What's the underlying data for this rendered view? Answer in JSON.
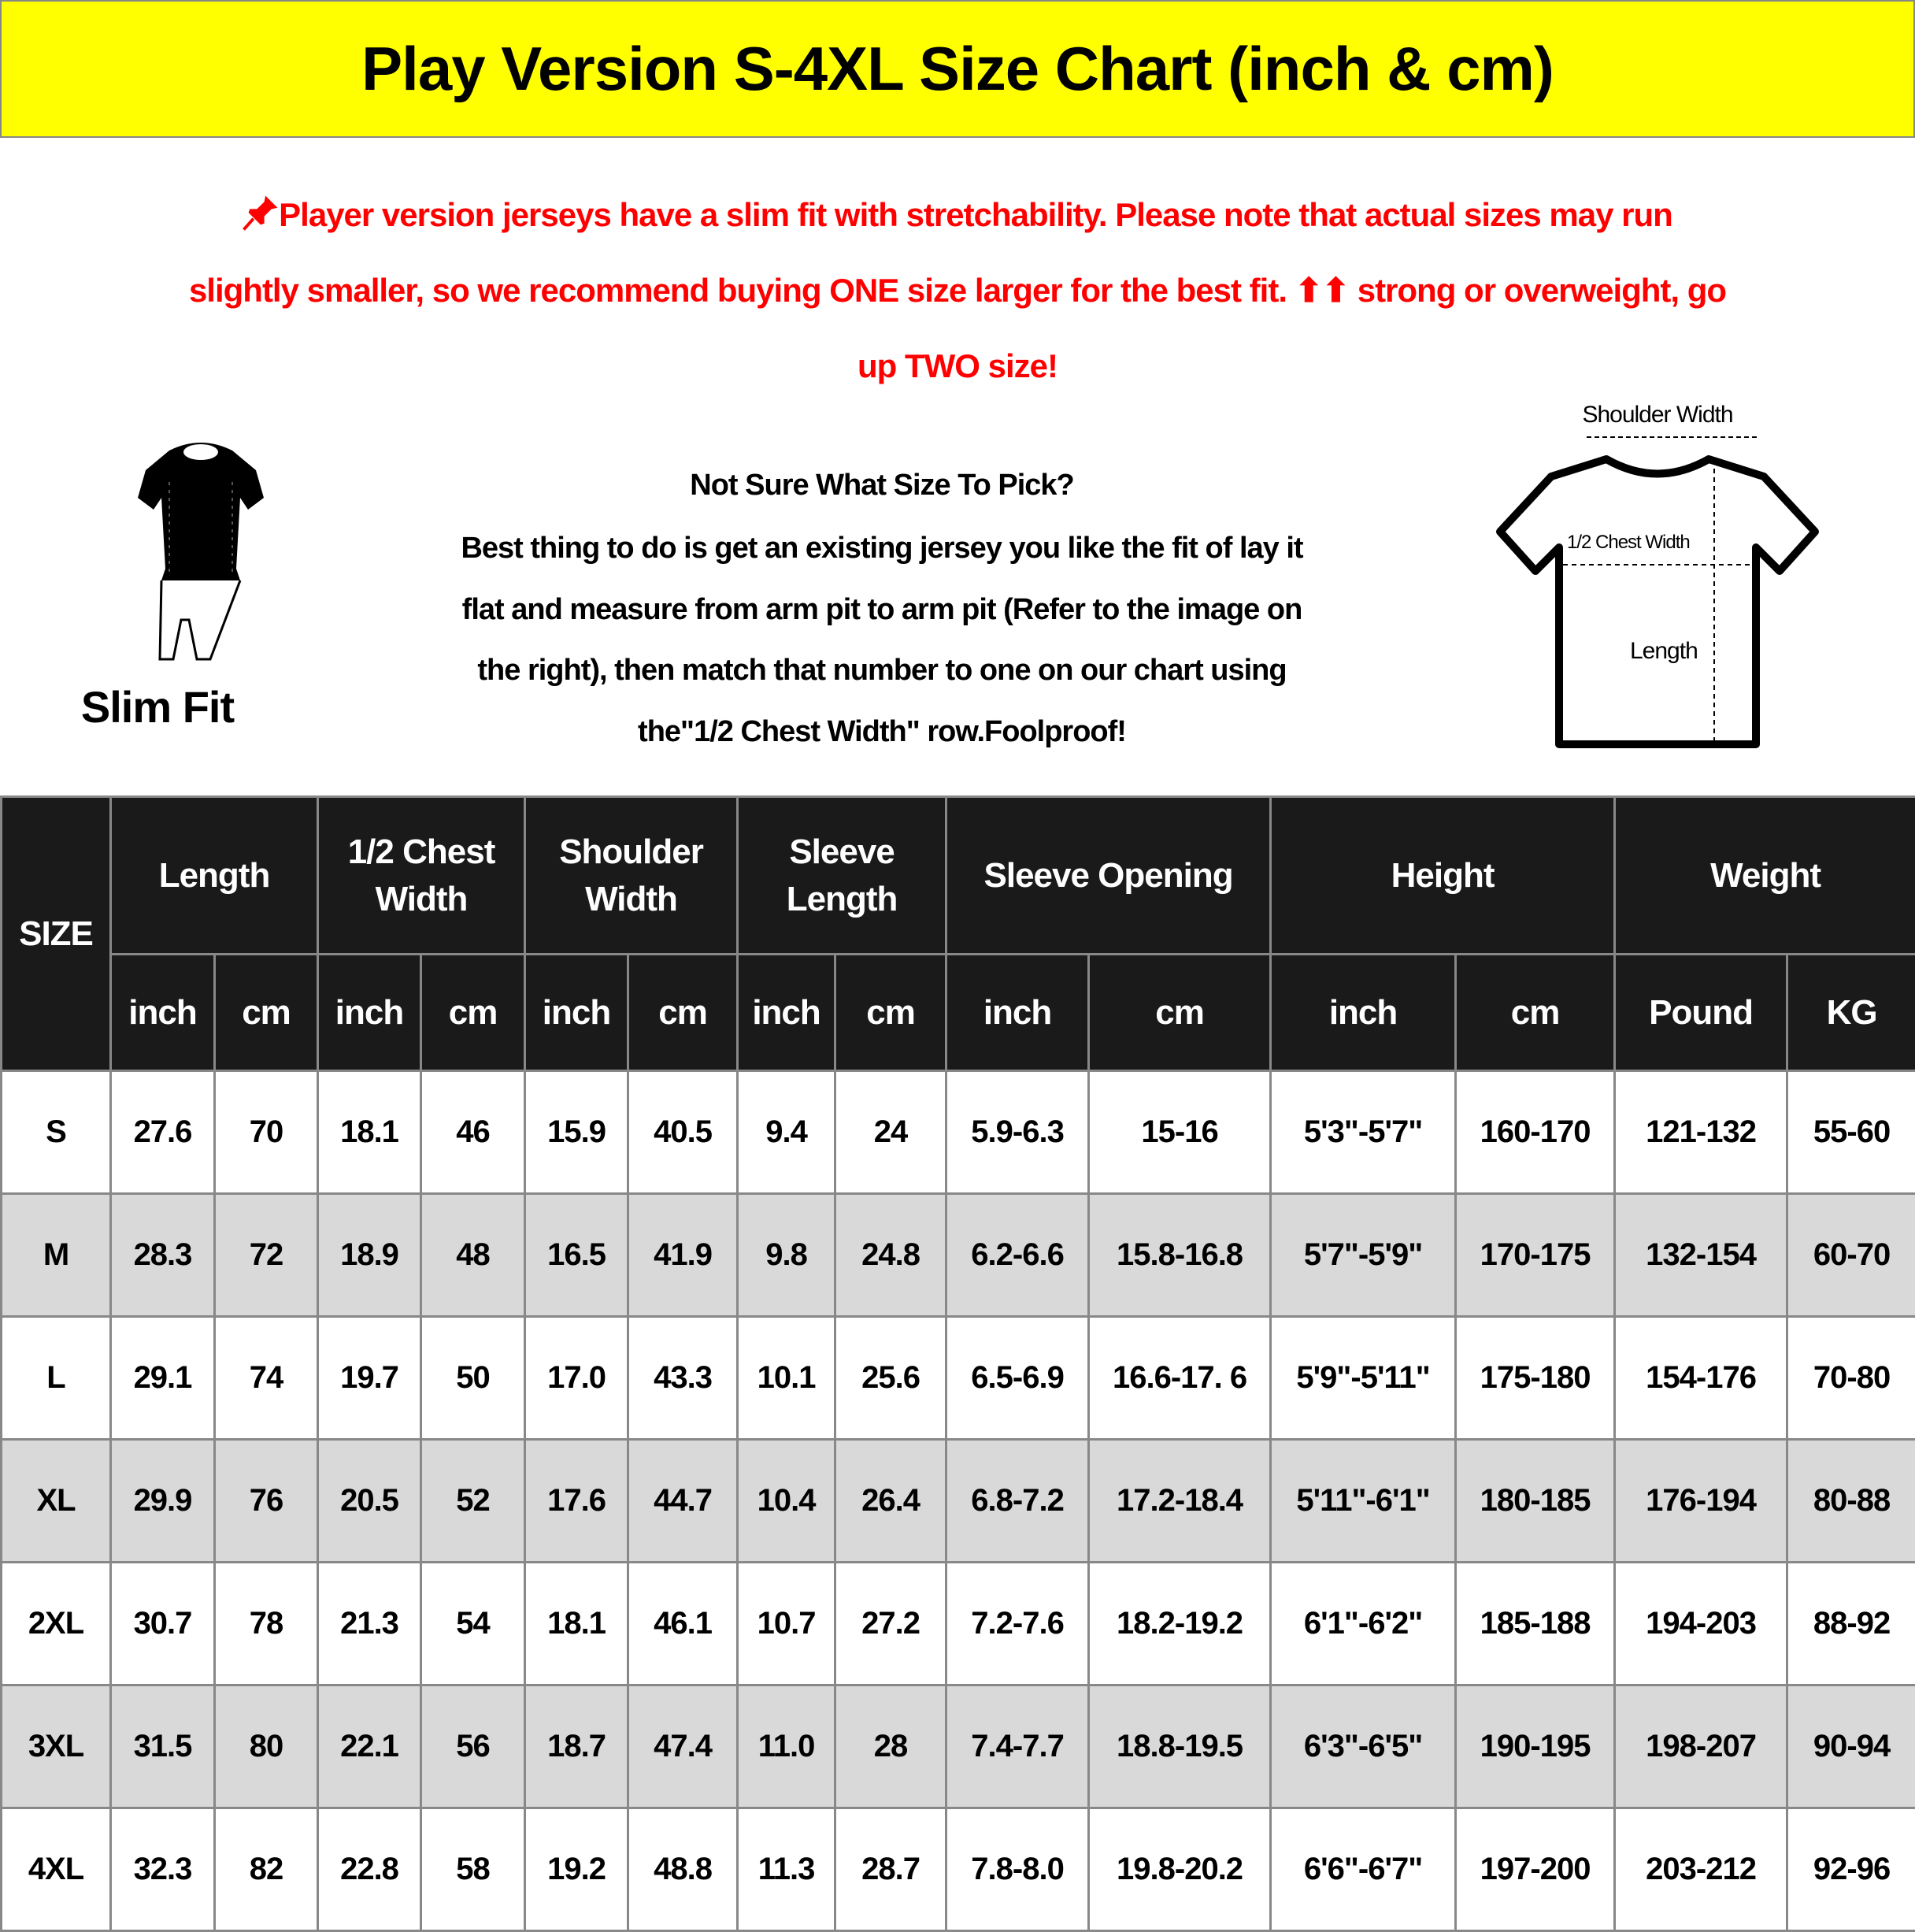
{
  "title": "Play Version S-4XL Size Chart (inch & cm)",
  "notice": {
    "icon": "pushpin-icon",
    "line1": "Player version jerseys have a slim fit with stretchability. Please note that actual sizes may run",
    "line2": "slightly smaller, so we recommend buying ONE size larger for the best fit. ⬆⬆ strong or overweight, go",
    "line3": "up TWO size!",
    "color": "#ff0000"
  },
  "fit": {
    "label": "Slim Fit"
  },
  "guide": {
    "heading": "Not Sure What Size To Pick?",
    "lines": [
      "Best thing to do is get an existing jersey you like the fit of lay it",
      "flat and measure from arm pit to arm pit (Refer to the image on",
      "the right), then match that number to one on our chart using",
      "the\"1/2 Chest Width\" row.Foolproof!"
    ]
  },
  "diagram": {
    "shoulder": "Shoulder Width",
    "chest": "1/2 Chest Width",
    "length": "Length"
  },
  "table": {
    "size_header": "SIZE",
    "groups": [
      "Length",
      "1/2 Chest Width",
      "Shoulder Width",
      "Sleeve Length",
      "Sleeve Opening",
      "Height",
      "Weight"
    ],
    "units": [
      "inch",
      "cm",
      "inch",
      "cm",
      "inch",
      "cm",
      "inch",
      "cm",
      "inch",
      "cm",
      "inch",
      "cm",
      "Pound",
      "KG"
    ],
    "rows": [
      [
        "S",
        "27.6",
        "70",
        "18.1",
        "46",
        "15.9",
        "40.5",
        "9.4",
        "24",
        "5.9-6.3",
        "15-16",
        "5'3\"-5'7\"",
        "160-170",
        "121-132",
        "55-60"
      ],
      [
        "M",
        "28.3",
        "72",
        "18.9",
        "48",
        "16.5",
        "41.9",
        "9.8",
        "24.8",
        "6.2-6.6",
        "15.8-16.8",
        "5'7\"-5'9\"",
        "170-175",
        "132-154",
        "60-70"
      ],
      [
        "L",
        "29.1",
        "74",
        "19.7",
        "50",
        "17.0",
        "43.3",
        "10.1",
        "25.6",
        "6.5-6.9",
        "16.6-17. 6",
        "5'9\"-5'11\"",
        "175-180",
        "154-176",
        "70-80"
      ],
      [
        "XL",
        "29.9",
        "76",
        "20.5",
        "52",
        "17.6",
        "44.7",
        "10.4",
        "26.4",
        "6.8-7.2",
        "17.2-18.4",
        "5'11\"-6'1\"",
        "180-185",
        "176-194",
        "80-88"
      ],
      [
        "2XL",
        "30.7",
        "78",
        "21.3",
        "54",
        "18.1",
        "46.1",
        "10.7",
        "27.2",
        "7.2-7.6",
        "18.2-19.2",
        "6'1\"-6'2\"",
        "185-188",
        "194-203",
        "88-92"
      ],
      [
        "3XL",
        "31.5",
        "80",
        "22.1",
        "56",
        "18.7",
        "47.4",
        "11.0",
        "28",
        "7.4-7.7",
        "18.8-19.5",
        "6'3\"-6'5\"",
        "190-195",
        "198-207",
        "90-94"
      ],
      [
        "4XL",
        "32.3",
        "82",
        "22.8",
        "58",
        "19.2",
        "48.8",
        "11.3",
        "28.7",
        "7.8-8.0",
        "19.8-20.2",
        "6'6\"-6'7\"",
        "197-200",
        "203-212",
        "92-96"
      ]
    ]
  }
}
